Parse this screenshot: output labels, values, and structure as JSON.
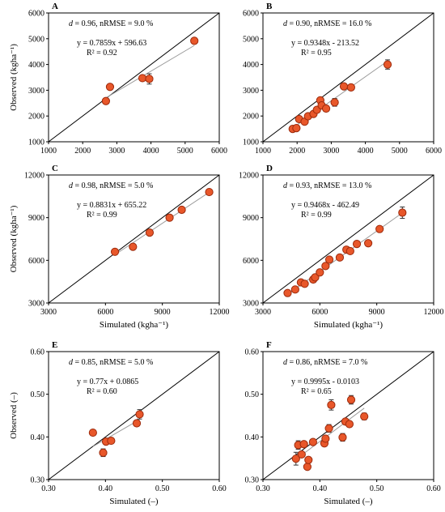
{
  "chart_data": [
    {
      "panel": "A",
      "type": "scatter",
      "stats": {
        "d": "0.96",
        "nrmse": "9.0 %",
        "eq": "y = 0.7859x + 596.63",
        "r2": "R² = 0.92"
      },
      "xlim": [
        1000,
        6000
      ],
      "ylim": [
        1000,
        6000
      ],
      "xticks": [
        "1000",
        "2000",
        "3000",
        "4000",
        "5000",
        "6000"
      ],
      "yticks": [
        "1000",
        "2000",
        "3000",
        "4000",
        "5000",
        "6000"
      ],
      "xlabel": "",
      "ylabel": "Observed (kgha⁻¹)",
      "fit": {
        "slope": 0.7859,
        "intercept": 596.63
      },
      "points": [
        {
          "x": 2680,
          "y": 2580,
          "err": 0
        },
        {
          "x": 2800,
          "y": 3130,
          "err": 0
        },
        {
          "x": 3750,
          "y": 3470,
          "err": 80
        },
        {
          "x": 3950,
          "y": 3440,
          "err": 200
        },
        {
          "x": 5270,
          "y": 4920,
          "err": 0
        }
      ]
    },
    {
      "panel": "B",
      "type": "scatter",
      "stats": {
        "d": "0.90",
        "nrmse": "16.0 %",
        "eq": "y = 0.9348x - 213.52",
        "r2": "R² = 0.95"
      },
      "xlim": [
        1000,
        6000
      ],
      "ylim": [
        1000,
        6000
      ],
      "xticks": [
        "1000",
        "2000",
        "3000",
        "4000",
        "5000",
        "6000"
      ],
      "yticks": [
        "1000",
        "2000",
        "3000",
        "4000",
        "5000",
        "6000"
      ],
      "xlabel": "",
      "ylabel": "",
      "fit": {
        "slope": 0.9348,
        "intercept": -213.52
      },
      "points": [
        {
          "x": 1870,
          "y": 1500,
          "err": 0
        },
        {
          "x": 1980,
          "y": 1530,
          "err": 0
        },
        {
          "x": 2060,
          "y": 1880,
          "err": 0
        },
        {
          "x": 2220,
          "y": 1780,
          "err": 0
        },
        {
          "x": 2320,
          "y": 1990,
          "err": 0
        },
        {
          "x": 2480,
          "y": 2080,
          "err": 0
        },
        {
          "x": 2580,
          "y": 2240,
          "err": 0
        },
        {
          "x": 2680,
          "y": 2610,
          "err": 0
        },
        {
          "x": 2720,
          "y": 2410,
          "err": 0
        },
        {
          "x": 2850,
          "y": 2290,
          "err": 0
        },
        {
          "x": 3100,
          "y": 2530,
          "err": 150
        },
        {
          "x": 3370,
          "y": 3150,
          "err": 0
        },
        {
          "x": 3580,
          "y": 3110,
          "err": 0
        },
        {
          "x": 4650,
          "y": 4000,
          "err": 180
        }
      ]
    },
    {
      "panel": "C",
      "type": "scatter",
      "stats": {
        "d": "0.98",
        "nrmse": "5.0 %",
        "eq": "y = 0.8831x + 655.22",
        "r2": "R² = 0.99"
      },
      "xlim": [
        3000,
        12000
      ],
      "ylim": [
        3000,
        12000
      ],
      "xticks": [
        "3000",
        "6000",
        "9000",
        "12000"
      ],
      "yticks": [
        "3000",
        "6000",
        "9000",
        "12000"
      ],
      "xlabel": "Simulated (kgha⁻¹)",
      "ylabel": "Observed (kgha⁻¹)",
      "fit": {
        "slope": 0.8831,
        "intercept": 655.22
      },
      "points": [
        {
          "x": 6500,
          "y": 6600,
          "err": 0
        },
        {
          "x": 7450,
          "y": 6950,
          "err": 0
        },
        {
          "x": 8330,
          "y": 7950,
          "err": 0
        },
        {
          "x": 9380,
          "y": 9000,
          "err": 200
        },
        {
          "x": 10020,
          "y": 9550,
          "err": 0
        },
        {
          "x": 11470,
          "y": 10800,
          "err": 0
        }
      ]
    },
    {
      "panel": "D",
      "type": "scatter",
      "stats": {
        "d": "0.93",
        "nrmse": "13.0 %",
        "eq": "y = 0.9468x - 462.49",
        "r2": "R² = 0.99"
      },
      "xlim": [
        3000,
        12000
      ],
      "ylim": [
        3000,
        12000
      ],
      "xticks": [
        "3000",
        "6000",
        "9000",
        "12000"
      ],
      "yticks": [
        "3000",
        "6000",
        "9000",
        "12000"
      ],
      "xlabel": "Simulated (kgha⁻¹)",
      "ylabel": "",
      "fit": {
        "slope": 0.9468,
        "intercept": -462.49
      },
      "points": [
        {
          "x": 4300,
          "y": 3700,
          "err": 0
        },
        {
          "x": 4700,
          "y": 3950,
          "err": 0
        },
        {
          "x": 5000,
          "y": 4450,
          "err": 0
        },
        {
          "x": 5200,
          "y": 4350,
          "err": 0
        },
        {
          "x": 5650,
          "y": 4650,
          "err": 0
        },
        {
          "x": 5750,
          "y": 4800,
          "err": 0
        },
        {
          "x": 6000,
          "y": 5150,
          "err": 0
        },
        {
          "x": 6300,
          "y": 5600,
          "err": 0
        },
        {
          "x": 6500,
          "y": 6050,
          "err": 0
        },
        {
          "x": 7050,
          "y": 6200,
          "err": 0
        },
        {
          "x": 7400,
          "y": 6750,
          "err": 0
        },
        {
          "x": 7600,
          "y": 6650,
          "err": 0
        },
        {
          "x": 7950,
          "y": 7150,
          "err": 0
        },
        {
          "x": 8550,
          "y": 7200,
          "err": 0
        },
        {
          "x": 9150,
          "y": 8200,
          "err": 0
        },
        {
          "x": 10350,
          "y": 9350,
          "err": 400
        }
      ]
    },
    {
      "panel": "E",
      "type": "scatter",
      "stats": {
        "d": "0.85",
        "nrmse": "5.0 %",
        "eq": "y = 0.77x + 0.0865",
        "r2": "R² = 0.60"
      },
      "xlim": [
        0.3,
        0.6
      ],
      "ylim": [
        0.3,
        0.6
      ],
      "xticks": [
        "0.30",
        "0.40",
        "0.50",
        "0.60"
      ],
      "yticks": [
        "0.30",
        "0.40",
        "0.50",
        "0.60"
      ],
      "xlabel": "Simulated (–)",
      "ylabel": "Observed (–)",
      "fit": {
        "slope": 0.77,
        "intercept": 0.0865
      },
      "points": [
        {
          "x": 0.378,
          "y": 0.41,
          "err": 0
        },
        {
          "x": 0.396,
          "y": 0.363,
          "err": 0.009
        },
        {
          "x": 0.401,
          "y": 0.389,
          "err": 0
        },
        {
          "x": 0.41,
          "y": 0.391,
          "err": 0
        },
        {
          "x": 0.455,
          "y": 0.432,
          "err": 0
        },
        {
          "x": 0.46,
          "y": 0.453,
          "err": 0.011
        }
      ]
    },
    {
      "panel": "F",
      "type": "scatter",
      "stats": {
        "d": "0.86",
        "nrmse": "7.0 %",
        "eq": "y = 0.9995x - 0.0103",
        "r2": "R² = 0.65"
      },
      "xlim": [
        0.3,
        0.6
      ],
      "ylim": [
        0.3,
        0.6
      ],
      "xticks": [
        "0.30",
        "0.40",
        "0.50",
        "0.60"
      ],
      "yticks": [
        "0.30",
        "0.40",
        "0.50",
        "0.60"
      ],
      "xlabel": "Simulated (–)",
      "ylabel": "",
      "fit": {
        "slope": 0.9995,
        "intercept": -0.0103
      },
      "points": [
        {
          "x": 0.358,
          "y": 0.349,
          "err": 0.015
        },
        {
          "x": 0.362,
          "y": 0.381,
          "err": 0.01
        },
        {
          "x": 0.368,
          "y": 0.359,
          "err": 0
        },
        {
          "x": 0.372,
          "y": 0.383,
          "err": 0
        },
        {
          "x": 0.378,
          "y": 0.33,
          "err": 0
        },
        {
          "x": 0.38,
          "y": 0.346,
          "err": 0
        },
        {
          "x": 0.388,
          "y": 0.388,
          "err": 0
        },
        {
          "x": 0.408,
          "y": 0.385,
          "err": 0
        },
        {
          "x": 0.41,
          "y": 0.396,
          "err": 0
        },
        {
          "x": 0.416,
          "y": 0.42,
          "err": 0.009
        },
        {
          "x": 0.42,
          "y": 0.475,
          "err": 0.012
        },
        {
          "x": 0.44,
          "y": 0.399,
          "err": 0.009
        },
        {
          "x": 0.445,
          "y": 0.436,
          "err": 0
        },
        {
          "x": 0.452,
          "y": 0.43,
          "err": 0
        },
        {
          "x": 0.455,
          "y": 0.487,
          "err": 0.01
        },
        {
          "x": 0.478,
          "y": 0.448,
          "err": 0.008
        }
      ]
    }
  ],
  "style": {
    "marker_fill": "#e8572a",
    "marker_stroke": "#9c2a0c",
    "fit_line": "#9a9a9a",
    "one_to_one": "#000000"
  }
}
